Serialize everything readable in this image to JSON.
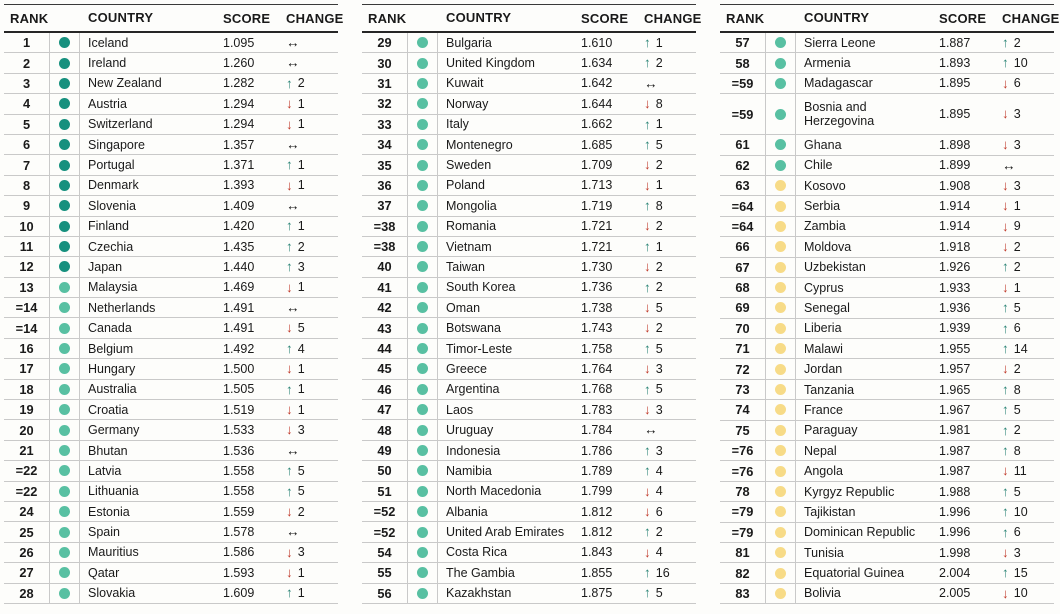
{
  "chart_data": {
    "type": "table",
    "columns": {
      "rank": "RANK",
      "country": "COUNTRY",
      "score": "SCORE",
      "change": "CHANGE"
    },
    "dot_colors": {
      "dark_teal": "#17907e",
      "teal": "#58c0a2",
      "yellow": "#f7db87"
    },
    "change_colors": {
      "up": "#2e8677",
      "down": "#c03a2b",
      "none": "#161616"
    },
    "icons": {
      "up": "↑",
      "down": "↓",
      "none": "↔"
    },
    "tables": [
      {
        "rows": [
          {
            "rank": "1",
            "dot": "dark_teal",
            "country": "Iceland",
            "score": "1.095",
            "change": "none",
            "delta": ""
          },
          {
            "rank": "2",
            "dot": "dark_teal",
            "country": "Ireland",
            "score": "1.260",
            "change": "none",
            "delta": ""
          },
          {
            "rank": "3",
            "dot": "dark_teal",
            "country": "New Zealand",
            "score": "1.282",
            "change": "up",
            "delta": "2"
          },
          {
            "rank": "4",
            "dot": "dark_teal",
            "country": "Austria",
            "score": "1.294",
            "change": "down",
            "delta": "1"
          },
          {
            "rank": "5",
            "dot": "dark_teal",
            "country": "Switzerland",
            "score": "1.294",
            "change": "down",
            "delta": "1"
          },
          {
            "rank": "6",
            "dot": "dark_teal",
            "country": "Singapore",
            "score": "1.357",
            "change": "none",
            "delta": ""
          },
          {
            "rank": "7",
            "dot": "dark_teal",
            "country": "Portugal",
            "score": "1.371",
            "change": "up",
            "delta": "1"
          },
          {
            "rank": "8",
            "dot": "dark_teal",
            "country": "Denmark",
            "score": "1.393",
            "change": "down",
            "delta": "1"
          },
          {
            "rank": "9",
            "dot": "dark_teal",
            "country": "Slovenia",
            "score": "1.409",
            "change": "none",
            "delta": ""
          },
          {
            "rank": "10",
            "dot": "dark_teal",
            "country": "Finland",
            "score": "1.420",
            "change": "up",
            "delta": "1"
          },
          {
            "rank": "11",
            "dot": "dark_teal",
            "country": "Czechia",
            "score": "1.435",
            "change": "up",
            "delta": "2"
          },
          {
            "rank": "12",
            "dot": "dark_teal",
            "country": "Japan",
            "score": "1.440",
            "change": "up",
            "delta": "3"
          },
          {
            "rank": "13",
            "dot": "teal",
            "country": "Malaysia",
            "score": "1.469",
            "change": "down",
            "delta": "1"
          },
          {
            "rank": "=14",
            "dot": "teal",
            "country": "Netherlands",
            "score": "1.491",
            "change": "none",
            "delta": ""
          },
          {
            "rank": "=14",
            "dot": "teal",
            "country": "Canada",
            "score": "1.491",
            "change": "down",
            "delta": "5"
          },
          {
            "rank": "16",
            "dot": "teal",
            "country": "Belgium",
            "score": "1.492",
            "change": "up",
            "delta": "4"
          },
          {
            "rank": "17",
            "dot": "teal",
            "country": "Hungary",
            "score": "1.500",
            "change": "down",
            "delta": "1"
          },
          {
            "rank": "18",
            "dot": "teal",
            "country": "Australia",
            "score": "1.505",
            "change": "up",
            "delta": "1"
          },
          {
            "rank": "19",
            "dot": "teal",
            "country": "Croatia",
            "score": "1.519",
            "change": "down",
            "delta": "1"
          },
          {
            "rank": "20",
            "dot": "teal",
            "country": "Germany",
            "score": "1.533",
            "change": "down",
            "delta": "3"
          },
          {
            "rank": "21",
            "dot": "teal",
            "country": "Bhutan",
            "score": "1.536",
            "change": "none",
            "delta": ""
          },
          {
            "rank": "=22",
            "dot": "teal",
            "country": "Latvia",
            "score": "1.558",
            "change": "up",
            "delta": "5"
          },
          {
            "rank": "=22",
            "dot": "teal",
            "country": "Lithuania",
            "score": "1.558",
            "change": "up",
            "delta": "5"
          },
          {
            "rank": "24",
            "dot": "teal",
            "country": "Estonia",
            "score": "1.559",
            "change": "down",
            "delta": "2"
          },
          {
            "rank": "25",
            "dot": "teal",
            "country": "Spain",
            "score": "1.578",
            "change": "none",
            "delta": ""
          },
          {
            "rank": "26",
            "dot": "teal",
            "country": "Mauritius",
            "score": "1.586",
            "change": "down",
            "delta": "3"
          },
          {
            "rank": "27",
            "dot": "teal",
            "country": "Qatar",
            "score": "1.593",
            "change": "down",
            "delta": "1"
          },
          {
            "rank": "28",
            "dot": "teal",
            "country": "Slovakia",
            "score": "1.609",
            "change": "up",
            "delta": "1"
          }
        ]
      },
      {
        "rows": [
          {
            "rank": "29",
            "dot": "teal",
            "country": "Bulgaria",
            "score": "1.610",
            "change": "up",
            "delta": "1"
          },
          {
            "rank": "30",
            "dot": "teal",
            "country": "United Kingdom",
            "score": "1.634",
            "change": "up",
            "delta": "2"
          },
          {
            "rank": "31",
            "dot": "teal",
            "country": "Kuwait",
            "score": "1.642",
            "change": "none",
            "delta": ""
          },
          {
            "rank": "32",
            "dot": "teal",
            "country": "Norway",
            "score": "1.644",
            "change": "down",
            "delta": "8"
          },
          {
            "rank": "33",
            "dot": "teal",
            "country": "Italy",
            "score": "1.662",
            "change": "up",
            "delta": "1"
          },
          {
            "rank": "34",
            "dot": "teal",
            "country": "Montenegro",
            "score": "1.685",
            "change": "up",
            "delta": "5"
          },
          {
            "rank": "35",
            "dot": "teal",
            "country": "Sweden",
            "score": "1.709",
            "change": "down",
            "delta": "2"
          },
          {
            "rank": "36",
            "dot": "teal",
            "country": "Poland",
            "score": "1.713",
            "change": "down",
            "delta": "1"
          },
          {
            "rank": "37",
            "dot": "teal",
            "country": "Mongolia",
            "score": "1.719",
            "change": "up",
            "delta": "8"
          },
          {
            "rank": "=38",
            "dot": "teal",
            "country": "Romania",
            "score": "1.721",
            "change": "down",
            "delta": "2"
          },
          {
            "rank": "=38",
            "dot": "teal",
            "country": "Vietnam",
            "score": "1.721",
            "change": "up",
            "delta": "1"
          },
          {
            "rank": "40",
            "dot": "teal",
            "country": "Taiwan",
            "score": "1.730",
            "change": "down",
            "delta": "2"
          },
          {
            "rank": "41",
            "dot": "teal",
            "country": "South Korea",
            "score": "1.736",
            "change": "up",
            "delta": "2"
          },
          {
            "rank": "42",
            "dot": "teal",
            "country": "Oman",
            "score": "1.738",
            "change": "down",
            "delta": "5"
          },
          {
            "rank": "43",
            "dot": "teal",
            "country": "Botswana",
            "score": "1.743",
            "change": "down",
            "delta": "2"
          },
          {
            "rank": "44",
            "dot": "teal",
            "country": "Timor-Leste",
            "score": "1.758",
            "change": "up",
            "delta": "5"
          },
          {
            "rank": "45",
            "dot": "teal",
            "country": "Greece",
            "score": "1.764",
            "change": "down",
            "delta": "3"
          },
          {
            "rank": "46",
            "dot": "teal",
            "country": "Argentina",
            "score": "1.768",
            "change": "up",
            "delta": "5"
          },
          {
            "rank": "47",
            "dot": "teal",
            "country": "Laos",
            "score": "1.783",
            "change": "down",
            "delta": "3"
          },
          {
            "rank": "48",
            "dot": "teal",
            "country": "Uruguay",
            "score": "1.784",
            "change": "none",
            "delta": ""
          },
          {
            "rank": "49",
            "dot": "teal",
            "country": "Indonesia",
            "score": "1.786",
            "change": "up",
            "delta": "3"
          },
          {
            "rank": "50",
            "dot": "teal",
            "country": "Namibia",
            "score": "1.789",
            "change": "up",
            "delta": "4"
          },
          {
            "rank": "51",
            "dot": "teal",
            "country": "North Macedonia",
            "score": "1.799",
            "change": "down",
            "delta": "4"
          },
          {
            "rank": "=52",
            "dot": "teal",
            "country": "Albania",
            "score": "1.812",
            "change": "down",
            "delta": "6"
          },
          {
            "rank": "=52",
            "dot": "teal",
            "country": "United Arab Emirates",
            "score": "1.812",
            "change": "up",
            "delta": "2"
          },
          {
            "rank": "54",
            "dot": "teal",
            "country": "Costa Rica",
            "score": "1.843",
            "change": "down",
            "delta": "4"
          },
          {
            "rank": "55",
            "dot": "teal",
            "country": "The Gambia",
            "score": "1.855",
            "change": "up",
            "delta": "16"
          },
          {
            "rank": "56",
            "dot": "teal",
            "country": "Kazakhstan",
            "score": "1.875",
            "change": "up",
            "delta": "5"
          }
        ]
      },
      {
        "rows": [
          {
            "rank": "57",
            "dot": "teal",
            "country": "Sierra Leone",
            "score": "1.887",
            "change": "up",
            "delta": "2"
          },
          {
            "rank": "58",
            "dot": "teal",
            "country": "Armenia",
            "score": "1.893",
            "change": "up",
            "delta": "10"
          },
          {
            "rank": "=59",
            "dot": "teal",
            "country": "Madagascar",
            "score": "1.895",
            "change": "down",
            "delta": "6"
          },
          {
            "rank": "=59",
            "dot": "teal",
            "country": "Bosnia and Herzegovina",
            "score": "1.895",
            "change": "down",
            "delta": "3",
            "tall": true
          },
          {
            "rank": "61",
            "dot": "teal",
            "country": "Ghana",
            "score": "1.898",
            "change": "down",
            "delta": "3"
          },
          {
            "rank": "62",
            "dot": "teal",
            "country": "Chile",
            "score": "1.899",
            "change": "none",
            "delta": ""
          },
          {
            "rank": "63",
            "dot": "yellow",
            "country": "Kosovo",
            "score": "1.908",
            "change": "down",
            "delta": "3"
          },
          {
            "rank": "=64",
            "dot": "yellow",
            "country": "Serbia",
            "score": "1.914",
            "change": "down",
            "delta": "1"
          },
          {
            "rank": "=64",
            "dot": "yellow",
            "country": "Zambia",
            "score": "1.914",
            "change": "down",
            "delta": "9"
          },
          {
            "rank": "66",
            "dot": "yellow",
            "country": "Moldova",
            "score": "1.918",
            "change": "down",
            "delta": "2"
          },
          {
            "rank": "67",
            "dot": "yellow",
            "country": "Uzbekistan",
            "score": "1.926",
            "change": "up",
            "delta": "2"
          },
          {
            "rank": "68",
            "dot": "yellow",
            "country": "Cyprus",
            "score": "1.933",
            "change": "down",
            "delta": "1"
          },
          {
            "rank": "69",
            "dot": "yellow",
            "country": "Senegal",
            "score": "1.936",
            "change": "up",
            "delta": "5"
          },
          {
            "rank": "70",
            "dot": "yellow",
            "country": "Liberia",
            "score": "1.939",
            "change": "up",
            "delta": "6"
          },
          {
            "rank": "71",
            "dot": "yellow",
            "country": "Malawi",
            "score": "1.955",
            "change": "up",
            "delta": "14"
          },
          {
            "rank": "72",
            "dot": "yellow",
            "country": "Jordan",
            "score": "1.957",
            "change": "down",
            "delta": "2"
          },
          {
            "rank": "73",
            "dot": "yellow",
            "country": "Tanzania",
            "score": "1.965",
            "change": "up",
            "delta": "8"
          },
          {
            "rank": "74",
            "dot": "yellow",
            "country": "France",
            "score": "1.967",
            "change": "up",
            "delta": "5"
          },
          {
            "rank": "75",
            "dot": "yellow",
            "country": "Paraguay",
            "score": "1.981",
            "change": "up",
            "delta": "2"
          },
          {
            "rank": "=76",
            "dot": "yellow",
            "country": "Nepal",
            "score": "1.987",
            "change": "up",
            "delta": "8"
          },
          {
            "rank": "=76",
            "dot": "yellow",
            "country": "Angola",
            "score": "1.987",
            "change": "down",
            "delta": "11"
          },
          {
            "rank": "78",
            "dot": "yellow",
            "country": "Kyrgyz Republic",
            "score": "1.988",
            "change": "up",
            "delta": "5"
          },
          {
            "rank": "=79",
            "dot": "yellow",
            "country": "Tajikistan",
            "score": "1.996",
            "change": "up",
            "delta": "10"
          },
          {
            "rank": "=79",
            "dot": "yellow",
            "country": "Dominican Republic",
            "score": "1.996",
            "change": "up",
            "delta": "6"
          },
          {
            "rank": "81",
            "dot": "yellow",
            "country": "Tunisia",
            "score": "1.998",
            "change": "down",
            "delta": "3"
          },
          {
            "rank": "82",
            "dot": "yellow",
            "country": "Equatorial Guinea",
            "score": "2.004",
            "change": "up",
            "delta": "15"
          },
          {
            "rank": "83",
            "dot": "yellow",
            "country": "Bolivia",
            "score": "2.005",
            "change": "down",
            "delta": "10"
          }
        ]
      }
    ]
  }
}
